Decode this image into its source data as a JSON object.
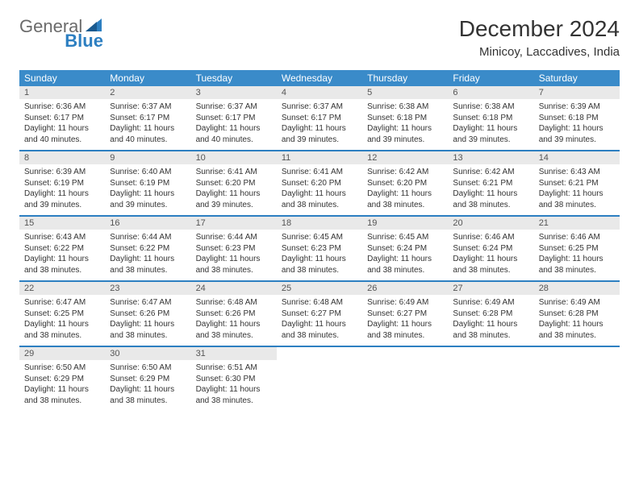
{
  "brand": {
    "text1": "General",
    "text2": "Blue"
  },
  "header": {
    "month_title": "December 2024",
    "location": "Minicoy, Laccadives, India"
  },
  "day_names": [
    "Sunday",
    "Monday",
    "Tuesday",
    "Wednesday",
    "Thursday",
    "Friday",
    "Saturday"
  ],
  "colors": {
    "header_bg": "#3a8bc9",
    "border": "#2d7fc1",
    "daynum_bg": "#e9e9e9",
    "text": "#333333",
    "logo_gray": "#6b6b6b",
    "logo_blue": "#2d7fc1"
  },
  "weeks": [
    [
      {
        "num": "1",
        "sunrise": "Sunrise: 6:36 AM",
        "sunset": "Sunset: 6:17 PM",
        "daylight": "Daylight: 11 hours and 40 minutes."
      },
      {
        "num": "2",
        "sunrise": "Sunrise: 6:37 AM",
        "sunset": "Sunset: 6:17 PM",
        "daylight": "Daylight: 11 hours and 40 minutes."
      },
      {
        "num": "3",
        "sunrise": "Sunrise: 6:37 AM",
        "sunset": "Sunset: 6:17 PM",
        "daylight": "Daylight: 11 hours and 40 minutes."
      },
      {
        "num": "4",
        "sunrise": "Sunrise: 6:37 AM",
        "sunset": "Sunset: 6:17 PM",
        "daylight": "Daylight: 11 hours and 39 minutes."
      },
      {
        "num": "5",
        "sunrise": "Sunrise: 6:38 AM",
        "sunset": "Sunset: 6:18 PM",
        "daylight": "Daylight: 11 hours and 39 minutes."
      },
      {
        "num": "6",
        "sunrise": "Sunrise: 6:38 AM",
        "sunset": "Sunset: 6:18 PM",
        "daylight": "Daylight: 11 hours and 39 minutes."
      },
      {
        "num": "7",
        "sunrise": "Sunrise: 6:39 AM",
        "sunset": "Sunset: 6:18 PM",
        "daylight": "Daylight: 11 hours and 39 minutes."
      }
    ],
    [
      {
        "num": "8",
        "sunrise": "Sunrise: 6:39 AM",
        "sunset": "Sunset: 6:19 PM",
        "daylight": "Daylight: 11 hours and 39 minutes."
      },
      {
        "num": "9",
        "sunrise": "Sunrise: 6:40 AM",
        "sunset": "Sunset: 6:19 PM",
        "daylight": "Daylight: 11 hours and 39 minutes."
      },
      {
        "num": "10",
        "sunrise": "Sunrise: 6:41 AM",
        "sunset": "Sunset: 6:20 PM",
        "daylight": "Daylight: 11 hours and 39 minutes."
      },
      {
        "num": "11",
        "sunrise": "Sunrise: 6:41 AM",
        "sunset": "Sunset: 6:20 PM",
        "daylight": "Daylight: 11 hours and 38 minutes."
      },
      {
        "num": "12",
        "sunrise": "Sunrise: 6:42 AM",
        "sunset": "Sunset: 6:20 PM",
        "daylight": "Daylight: 11 hours and 38 minutes."
      },
      {
        "num": "13",
        "sunrise": "Sunrise: 6:42 AM",
        "sunset": "Sunset: 6:21 PM",
        "daylight": "Daylight: 11 hours and 38 minutes."
      },
      {
        "num": "14",
        "sunrise": "Sunrise: 6:43 AM",
        "sunset": "Sunset: 6:21 PM",
        "daylight": "Daylight: 11 hours and 38 minutes."
      }
    ],
    [
      {
        "num": "15",
        "sunrise": "Sunrise: 6:43 AM",
        "sunset": "Sunset: 6:22 PM",
        "daylight": "Daylight: 11 hours and 38 minutes."
      },
      {
        "num": "16",
        "sunrise": "Sunrise: 6:44 AM",
        "sunset": "Sunset: 6:22 PM",
        "daylight": "Daylight: 11 hours and 38 minutes."
      },
      {
        "num": "17",
        "sunrise": "Sunrise: 6:44 AM",
        "sunset": "Sunset: 6:23 PM",
        "daylight": "Daylight: 11 hours and 38 minutes."
      },
      {
        "num": "18",
        "sunrise": "Sunrise: 6:45 AM",
        "sunset": "Sunset: 6:23 PM",
        "daylight": "Daylight: 11 hours and 38 minutes."
      },
      {
        "num": "19",
        "sunrise": "Sunrise: 6:45 AM",
        "sunset": "Sunset: 6:24 PM",
        "daylight": "Daylight: 11 hours and 38 minutes."
      },
      {
        "num": "20",
        "sunrise": "Sunrise: 6:46 AM",
        "sunset": "Sunset: 6:24 PM",
        "daylight": "Daylight: 11 hours and 38 minutes."
      },
      {
        "num": "21",
        "sunrise": "Sunrise: 6:46 AM",
        "sunset": "Sunset: 6:25 PM",
        "daylight": "Daylight: 11 hours and 38 minutes."
      }
    ],
    [
      {
        "num": "22",
        "sunrise": "Sunrise: 6:47 AM",
        "sunset": "Sunset: 6:25 PM",
        "daylight": "Daylight: 11 hours and 38 minutes."
      },
      {
        "num": "23",
        "sunrise": "Sunrise: 6:47 AM",
        "sunset": "Sunset: 6:26 PM",
        "daylight": "Daylight: 11 hours and 38 minutes."
      },
      {
        "num": "24",
        "sunrise": "Sunrise: 6:48 AM",
        "sunset": "Sunset: 6:26 PM",
        "daylight": "Daylight: 11 hours and 38 minutes."
      },
      {
        "num": "25",
        "sunrise": "Sunrise: 6:48 AM",
        "sunset": "Sunset: 6:27 PM",
        "daylight": "Daylight: 11 hours and 38 minutes."
      },
      {
        "num": "26",
        "sunrise": "Sunrise: 6:49 AM",
        "sunset": "Sunset: 6:27 PM",
        "daylight": "Daylight: 11 hours and 38 minutes."
      },
      {
        "num": "27",
        "sunrise": "Sunrise: 6:49 AM",
        "sunset": "Sunset: 6:28 PM",
        "daylight": "Daylight: 11 hours and 38 minutes."
      },
      {
        "num": "28",
        "sunrise": "Sunrise: 6:49 AM",
        "sunset": "Sunset: 6:28 PM",
        "daylight": "Daylight: 11 hours and 38 minutes."
      }
    ],
    [
      {
        "num": "29",
        "sunrise": "Sunrise: 6:50 AM",
        "sunset": "Sunset: 6:29 PM",
        "daylight": "Daylight: 11 hours and 38 minutes."
      },
      {
        "num": "30",
        "sunrise": "Sunrise: 6:50 AM",
        "sunset": "Sunset: 6:29 PM",
        "daylight": "Daylight: 11 hours and 38 minutes."
      },
      {
        "num": "31",
        "sunrise": "Sunrise: 6:51 AM",
        "sunset": "Sunset: 6:30 PM",
        "daylight": "Daylight: 11 hours and 38 minutes."
      },
      null,
      null,
      null,
      null
    ]
  ]
}
